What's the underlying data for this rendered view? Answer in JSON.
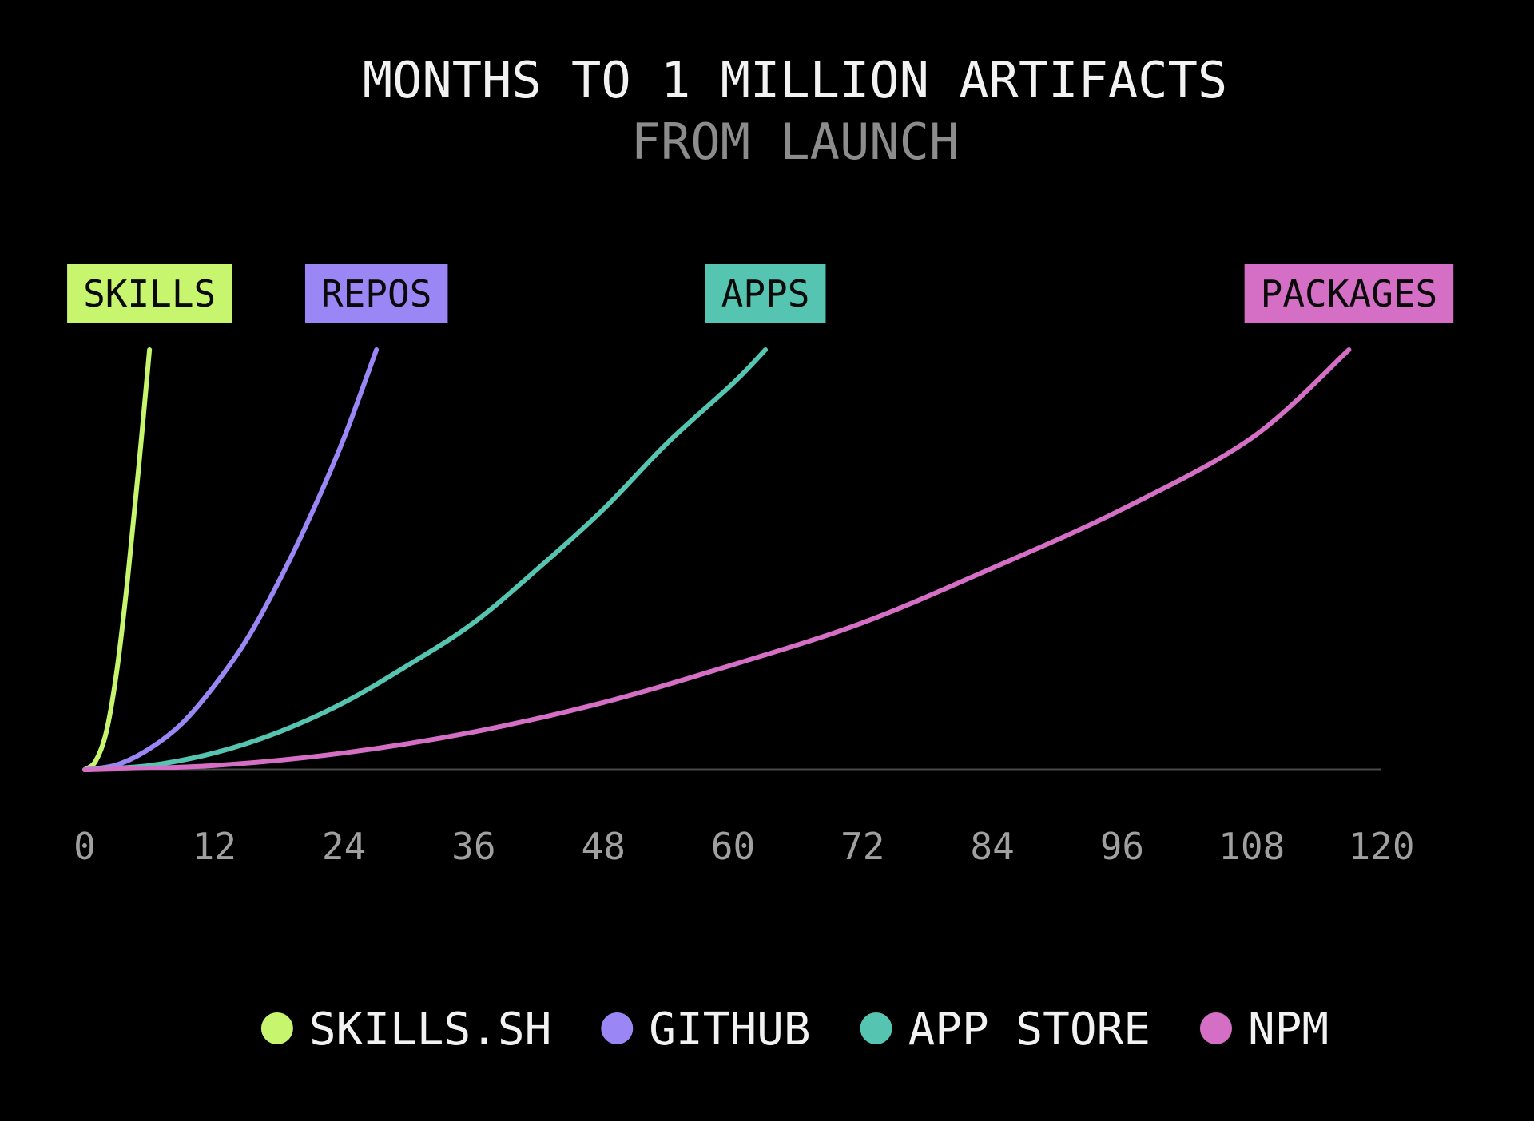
{
  "chart_data": {
    "type": "line",
    "title": "MONTHS TO 1 MILLION ARTIFACTS",
    "subtitle": "FROM LAUNCH",
    "xlabel": "",
    "ylabel": "",
    "xlim": [
      0,
      120
    ],
    "ylim": [
      0,
      1000000
    ],
    "x_ticks": [
      "0",
      "12",
      "24",
      "36",
      "48",
      "60",
      "72",
      "84",
      "96",
      "108",
      "120"
    ],
    "grid": false,
    "legend_position": "bottom-center",
    "series": [
      {
        "name": "SKILLS.SH",
        "end_label": "SKILLS",
        "color": "#c8f56e",
        "points": [
          [
            0,
            0
          ],
          [
            1,
            20000
          ],
          [
            2,
            90000
          ],
          [
            3,
            240000
          ],
          [
            4,
            460000
          ],
          [
            5,
            720000
          ],
          [
            6,
            1000000
          ]
        ]
      },
      {
        "name": "GITHUB",
        "end_label": "REPOS",
        "color": "#9a86f5",
        "points": [
          [
            0,
            0
          ],
          [
            3,
            12000
          ],
          [
            6,
            50000
          ],
          [
            9,
            110000
          ],
          [
            12,
            200000
          ],
          [
            15,
            310000
          ],
          [
            18,
            450000
          ],
          [
            21,
            610000
          ],
          [
            24,
            790000
          ],
          [
            27,
            1000000
          ]
        ]
      },
      {
        "name": "APP STORE",
        "end_label": "APPS",
        "color": "#55c5b1",
        "points": [
          [
            0,
            0
          ],
          [
            6,
            10000
          ],
          [
            12,
            40000
          ],
          [
            18,
            90000
          ],
          [
            24,
            160000
          ],
          [
            30,
            250000
          ],
          [
            36,
            350000
          ],
          [
            42,
            480000
          ],
          [
            48,
            620000
          ],
          [
            54,
            780000
          ],
          [
            60,
            920000
          ],
          [
            63,
            1000000
          ]
        ]
      },
      {
        "name": "NPM",
        "end_label": "PACKAGES",
        "color": "#d56fc6",
        "points": [
          [
            0,
            0
          ],
          [
            12,
            10000
          ],
          [
            24,
            40000
          ],
          [
            36,
            90000
          ],
          [
            48,
            160000
          ],
          [
            60,
            250000
          ],
          [
            72,
            350000
          ],
          [
            84,
            480000
          ],
          [
            96,
            620000
          ],
          [
            108,
            790000
          ],
          [
            117,
            1000000
          ]
        ]
      }
    ]
  },
  "colors": {
    "background": "#000000",
    "title": "#f2f2f2",
    "subtitle": "#8c8c8c",
    "axis": "#4a4a4a",
    "tick_label": "#a0a0a0",
    "legend_text": "#f2f2f2",
    "tag_text": "#0a0a0a"
  }
}
